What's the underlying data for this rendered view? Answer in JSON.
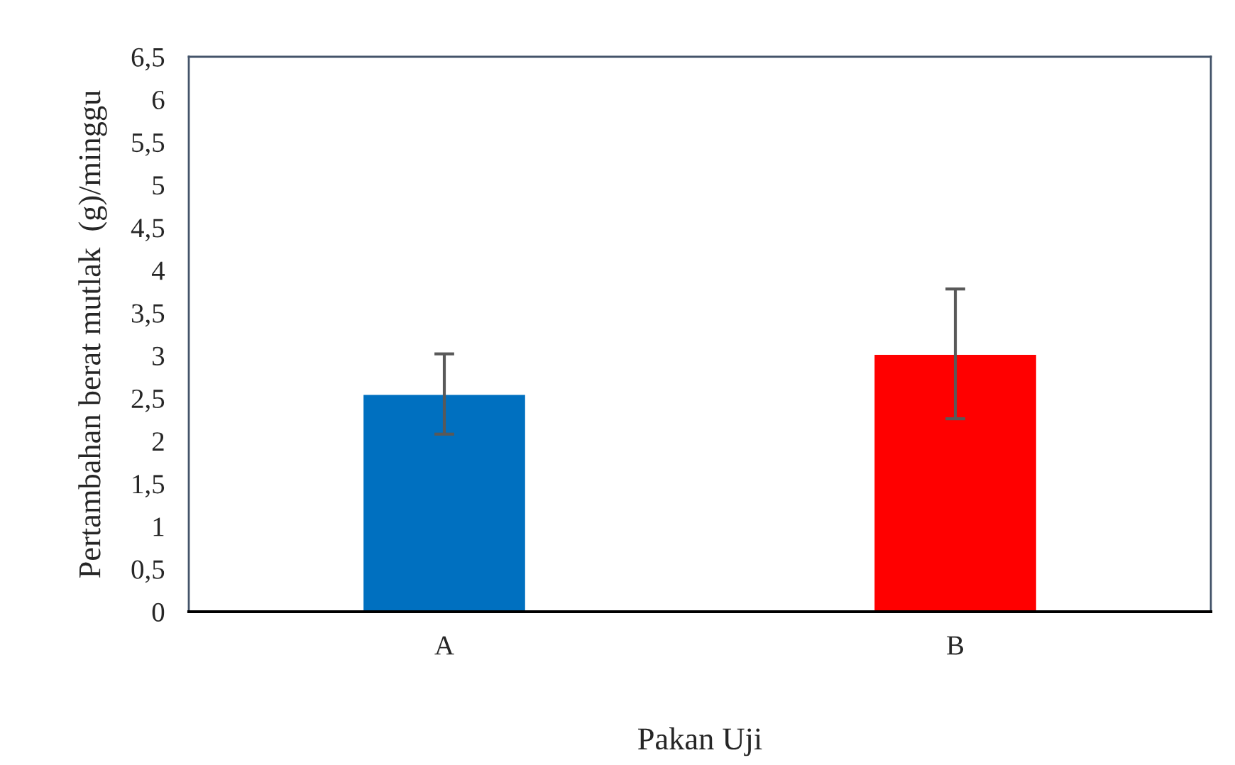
{
  "chart_data": {
    "type": "bar",
    "categories": [
      "A",
      "B"
    ],
    "values": [
      2.55,
      3.02
    ],
    "errors": [
      0.47,
      0.76
    ],
    "colors": [
      "#0070c0",
      "#ff0000"
    ],
    "xlabel": "Pakan Uji",
    "ylabel": "Pertambahan berat mutlak  (g)/minggu",
    "ylim": [
      0,
      6.5
    ],
    "yticks": [
      0,
      {
        "value": 0.5,
        "label": "0,5"
      },
      1,
      {
        "value": 1.5,
        "label": "1,5"
      },
      2,
      {
        "value": 2.5,
        "label": "2,5"
      },
      3,
      {
        "value": 3.5,
        "label": "3,5"
      },
      4,
      {
        "value": 4.5,
        "label": "4,5"
      },
      5,
      {
        "value": 5.5,
        "label": "5,5"
      },
      6,
      {
        "value": 6.5,
        "label": "6,5"
      }
    ],
    "grid": false,
    "legend": false
  }
}
